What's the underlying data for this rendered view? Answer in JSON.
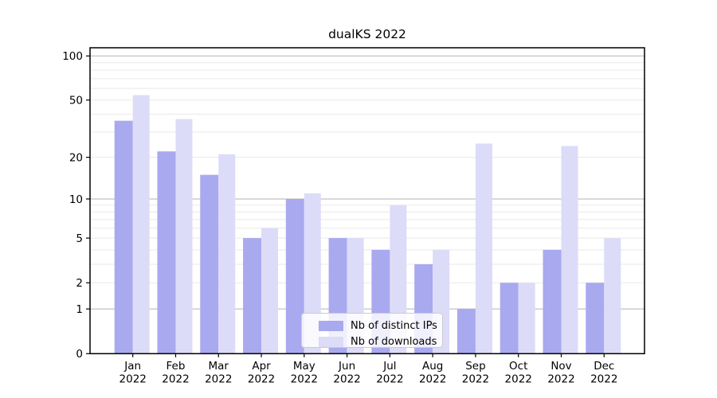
{
  "chart_data": {
    "type": "bar",
    "title": "dualKS 2022",
    "year_label": "2022",
    "categories": [
      "Jan",
      "Feb",
      "Mar",
      "Apr",
      "May",
      "Jun",
      "Jul",
      "Aug",
      "Sep",
      "Oct",
      "Nov",
      "Dec"
    ],
    "series": [
      {
        "name": "Nb of distinct IPs",
        "color": "#a9a9f0",
        "values": [
          36,
          22,
          15,
          5,
          10,
          5,
          4,
          3,
          1,
          2,
          4,
          2
        ]
      },
      {
        "name": "Nb of downloads",
        "color": "#dcdcf8",
        "values": [
          54,
          37,
          21,
          6,
          11,
          5,
          9,
          4,
          25,
          2,
          24,
          5
        ]
      }
    ],
    "y_scale": "log1p",
    "ylim": [
      0,
      100
    ],
    "y_ticks": [
      0,
      1,
      2,
      5,
      10,
      20,
      50,
      100
    ],
    "y_gridlines_major": [
      1,
      10,
      100
    ],
    "y_gridlines_minor": [
      2,
      3,
      4,
      5,
      6,
      7,
      8,
      9,
      20,
      30,
      40,
      50,
      60,
      70,
      80,
      90
    ],
    "grid": true,
    "legend_position": "lower center",
    "xlabel": "",
    "ylabel": ""
  },
  "colors": {
    "background": "#ffffff",
    "spine": "#000000",
    "gridline_major": "#b3b3b3",
    "gridline_minor": "#e9e9e9",
    "text": "#000000",
    "legend_border": "#cccccc"
  }
}
